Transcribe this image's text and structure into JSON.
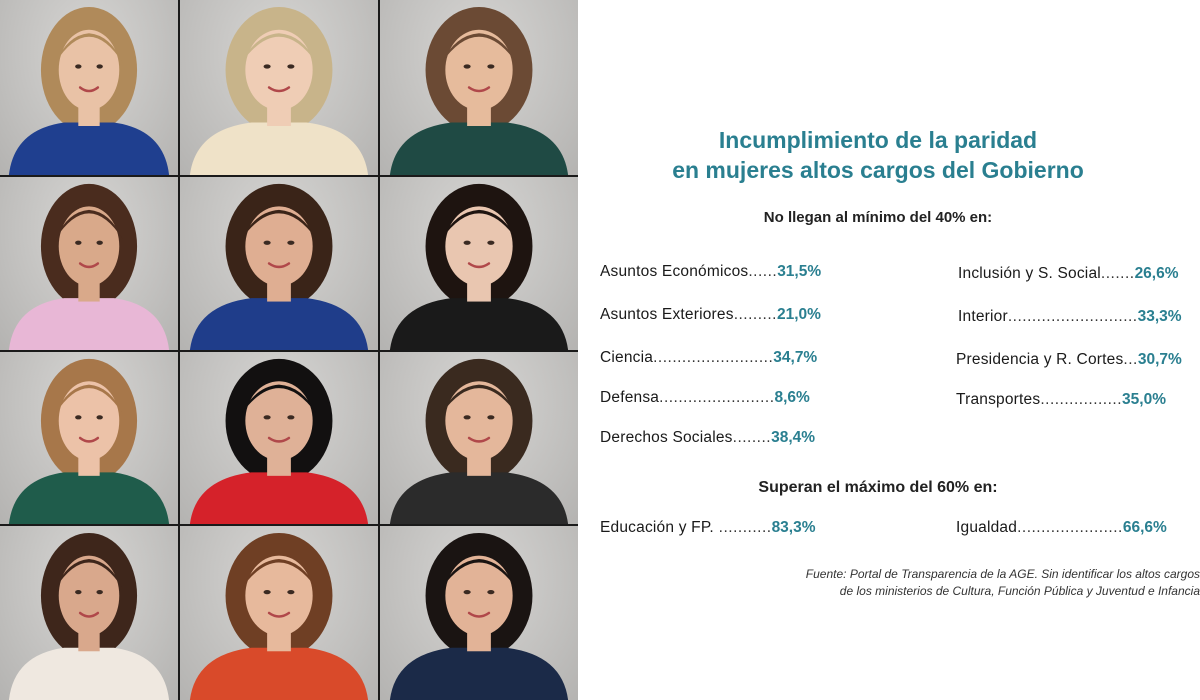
{
  "infographic": {
    "title_line1": "Incumplimiento de la paridad",
    "title_line2": "en mujeres altos cargos del Gobierno",
    "below_min_heading": "No llegan al mínimo del 40% en:",
    "below_min_left": [
      {
        "label": "Asuntos Económicos",
        "dots": "......",
        "value": "31,5%"
      },
      {
        "label": "Asuntos Exteriores",
        "dots": ".........",
        "value": "21,0%"
      },
      {
        "label": "Ciencia",
        "dots": ".........................",
        "value": "34,7%"
      },
      {
        "label": "Defensa",
        "dots": "........................",
        "value": "8,6%"
      },
      {
        "label": "Derechos Sociales",
        "dots": "........",
        "value": "38,4%"
      }
    ],
    "below_min_right": [
      {
        "label": "Inclusión y S. Social",
        "dots": ".......",
        "value": "26,6%"
      },
      {
        "label": "Interior",
        "dots": "...........................",
        "value": "33,3%"
      },
      {
        "label": "Presidencia y R. Cortes",
        "dots": "...",
        "value": "30,7%"
      },
      {
        "label": "Transportes",
        "dots": ".................",
        "value": "35,0%"
      }
    ],
    "above_max_heading": "Superan el máximo del 60% en:",
    "above_max_left": {
      "label": "Educación y FP.",
      "dots": " ...........",
      "value": "83,3%"
    },
    "above_max_right": {
      "label": "Igualdad",
      "dots": "......................",
      "value": "66,6%"
    },
    "source_line1": "Fuente: Portal de Transparencia de la AGE. Sin identificar los altos cargos",
    "source_line2": "de los ministerios de Cultura, Función Pública y Juventud e Infancia"
  },
  "colors": {
    "accent": "#2a7f90",
    "photo_background": "#c9c8c6"
  },
  "portraits": [
    {
      "hair": "#b08a5a",
      "skin": "#e9c2a6",
      "top": "#1f3f8f"
    },
    {
      "hair": "#c8b48a",
      "skin": "#efcdb5",
      "top": "#efe2c8"
    },
    {
      "hair": "#6b4a34",
      "skin": "#e6bb9c",
      "top": "#1f4a44"
    },
    {
      "hair": "#4a2c1e",
      "skin": "#d9a98a",
      "top": "#e8b7d6"
    },
    {
      "hair": "#3a2418",
      "skin": "#dfae92",
      "top": "#1f3d8a"
    },
    {
      "hair": "#1e1410",
      "skin": "#e9c6b0",
      "top": "#1a1a1a"
    },
    {
      "hair": "#a7774a",
      "skin": "#ecc2a8",
      "top": "#1f5c4b"
    },
    {
      "hair": "#121010",
      "skin": "#dfb197",
      "top": "#d5222a"
    },
    {
      "hair": "#3a2a1f",
      "skin": "#e4b79b",
      "top": "#2b2b2b"
    },
    {
      "hair": "#3e261b",
      "skin": "#d9a88c",
      "top": "#efe8e0"
    },
    {
      "hair": "#6f3f24",
      "skin": "#e7b99c",
      "top": "#d94a2a"
    },
    {
      "hair": "#1a1412",
      "skin": "#e2b397",
      "top": "#1b2a48"
    }
  ]
}
